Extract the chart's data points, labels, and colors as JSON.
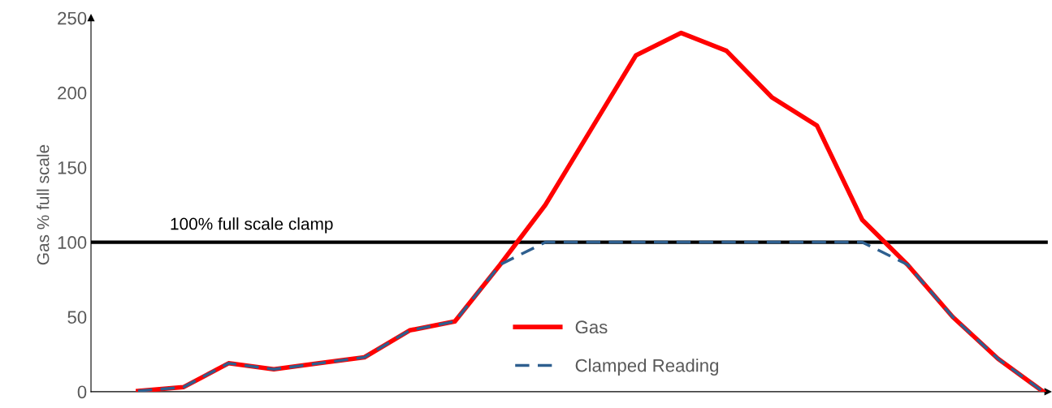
{
  "chart_data": {
    "type": "line",
    "ylabel": "Gas % full scale",
    "categories": [
      null,
      null,
      null,
      null,
      null,
      null,
      null,
      null,
      null,
      null,
      null,
      null,
      null,
      null,
      null,
      null,
      null,
      null,
      null,
      null,
      null
    ],
    "series": [
      {
        "name": "Gas",
        "color": "#ff0000",
        "line_style": "solid",
        "values": [
          0.5,
          3,
          19,
          15,
          19,
          23,
          41,
          47,
          85,
          125,
          175,
          225,
          240,
          228,
          197,
          178,
          115,
          85,
          50,
          22,
          0
        ]
      },
      {
        "name": "Clamped Reading",
        "color": "#2e5f8f",
        "line_style": "dashed",
        "values": [
          0.5,
          3,
          19,
          15,
          19,
          23,
          41,
          47,
          85,
          100,
          100,
          100,
          100,
          100,
          100,
          100,
          100,
          85,
          50,
          22,
          0
        ]
      }
    ],
    "ylim": [
      0,
      250
    ],
    "yticks": [
      0,
      50,
      100,
      150,
      200,
      250
    ],
    "ref_lines": [
      {
        "axis": "y",
        "value": 100,
        "label": "100% full scale clamp",
        "color": "#000000"
      }
    ],
    "grid": false,
    "legend": "bottom",
    "tick_labels": "y"
  }
}
